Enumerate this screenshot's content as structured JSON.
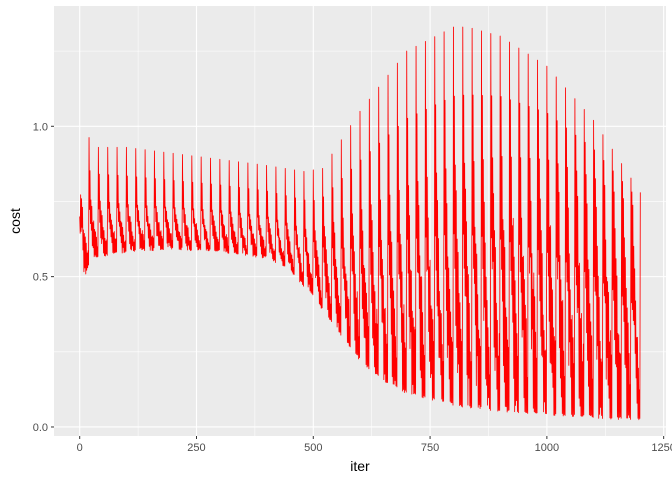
{
  "chart_data": {
    "type": "line",
    "title": "",
    "xlabel": "iter",
    "ylabel": "cost",
    "xlim": [
      -55,
      1255
    ],
    "ylim": [
      -0.03,
      1.4
    ],
    "x_ticks": [
      0,
      250,
      500,
      750,
      1000,
      1250
    ],
    "x_tick_labels": [
      "0",
      "250",
      "500",
      "750",
      "1000",
      "1250"
    ],
    "y_ticks": [
      0.0,
      0.5,
      1.0
    ],
    "y_tick_labels": [
      "0.0",
      "0.5",
      "1.0"
    ],
    "grid": true,
    "legend": "none",
    "panel_color": "#ebebeb",
    "grid_color": "#ffffff",
    "series": [
      {
        "color": "#ff0000",
        "cycle_length": 20,
        "x_max": 1200,
        "peak_envelope": {
          "x": [
            0,
            8,
            25,
            100,
            200,
            300,
            400,
            480,
            520,
            600,
            700,
            800,
            830,
            900,
            1000,
            1100,
            1200
          ],
          "y": [
            0.7,
            1.04,
            0.93,
            0.93,
            0.91,
            0.89,
            0.87,
            0.85,
            0.86,
            1.05,
            1.25,
            1.33,
            1.33,
            1.3,
            1.2,
            1.02,
            0.78
          ]
        },
        "mid_envelope": {
          "x": [
            0,
            100,
            200,
            300,
            400,
            500,
            600,
            700,
            800,
            900,
            1000,
            1100,
            1200
          ],
          "y": [
            0.76,
            0.74,
            0.73,
            0.72,
            0.7,
            0.65,
            0.72,
            0.8,
            0.87,
            0.9,
            0.89,
            0.83,
            0.72
          ]
        },
        "low_envelope": {
          "x": [
            0,
            8,
            25,
            100,
            200,
            300,
            400,
            450,
            500,
            550,
            600,
            650,
            700,
            800,
            900,
            1000,
            1100,
            1200
          ],
          "y": [
            0.55,
            0.48,
            0.56,
            0.58,
            0.59,
            0.58,
            0.56,
            0.52,
            0.43,
            0.32,
            0.22,
            0.15,
            0.11,
            0.07,
            0.05,
            0.04,
            0.03,
            0.02
          ]
        }
      }
    ]
  }
}
